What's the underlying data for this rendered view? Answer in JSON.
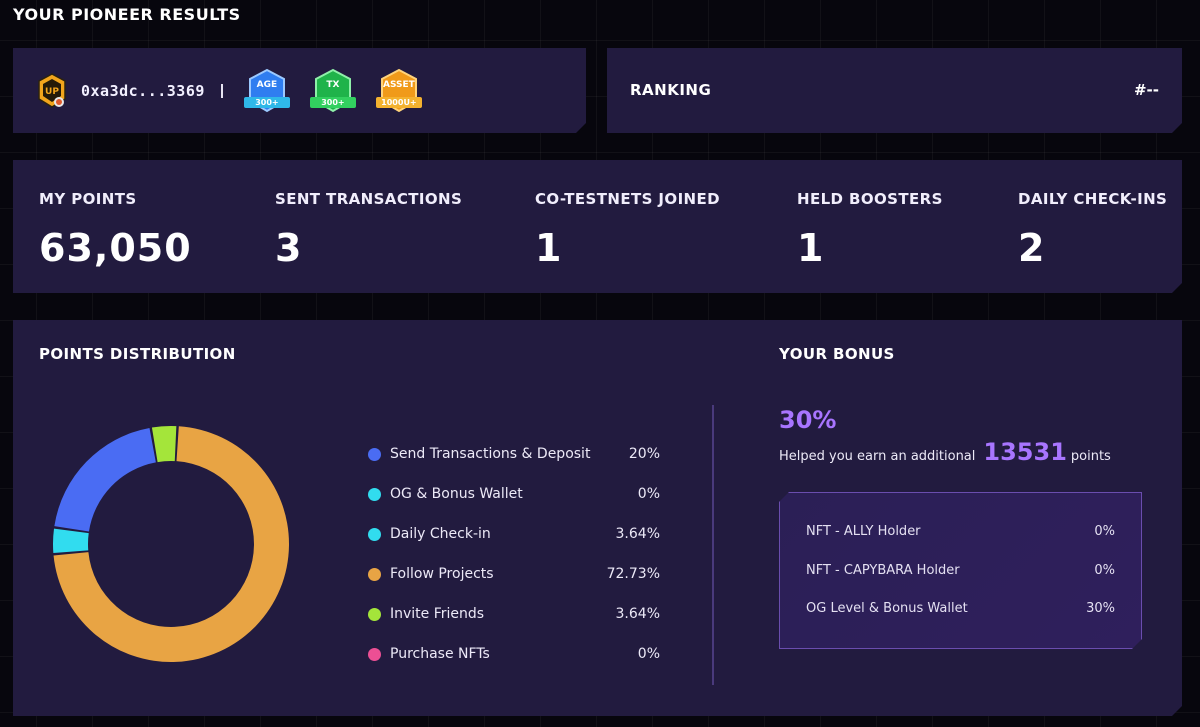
{
  "page": {
    "title": "YOUR PIONEER RESULTS"
  },
  "wallet": {
    "address": "0xa3dc...3369",
    "logo_text": "UP",
    "badges": [
      {
        "label": "AGE",
        "value": "300+",
        "color": "#2f7df0",
        "ribbon": "#2fb8e8"
      },
      {
        "label": "TX",
        "value": "300+",
        "color": "#1fb34a",
        "ribbon": "#32d05f"
      },
      {
        "label": "ASSET",
        "value": "1000U+",
        "color": "#f09a1a",
        "ribbon": "#f4b22f"
      }
    ]
  },
  "ranking": {
    "label": "RANKING",
    "value": "#--"
  },
  "stats": [
    {
      "label": "MY POINTS",
      "value": "63,050"
    },
    {
      "label": "SENT TRANSACTIONS",
      "value": "3"
    },
    {
      "label": "CO-TESTNETS JOINED",
      "value": "1"
    },
    {
      "label": "HELD BOOSTERS",
      "value": "1"
    },
    {
      "label": "DAILY CHECK-INS",
      "value": "2"
    }
  ],
  "distribution": {
    "title": "POINTS DISTRIBUTION",
    "items": [
      {
        "label": "Send Transactions & Deposit",
        "pct": "20%",
        "color": "#4a6cf3"
      },
      {
        "label": "OG & Bonus Wallet",
        "pct": "0%",
        "color": "#31dcef"
      },
      {
        "label": "Daily Check-in",
        "pct": "3.64%",
        "color": "#31dcef"
      },
      {
        "label": "Follow Projects",
        "pct": "72.73%",
        "color": "#e8a444"
      },
      {
        "label": "Invite Friends",
        "pct": "3.64%",
        "color": "#a4e53a"
      },
      {
        "label": "Purchase NFTs",
        "pct": "0%",
        "color": "#ec4f94"
      }
    ]
  },
  "chart_data": {
    "type": "pie",
    "categories": [
      "Send Transactions & Deposit",
      "OG & Bonus Wallet",
      "Daily Check-in",
      "Follow Projects",
      "Invite Friends",
      "Purchase NFTs"
    ],
    "values": [
      20,
      0,
      3.64,
      72.73,
      3.64,
      0
    ],
    "colors": [
      "#4a6cf3",
      "#31dcef",
      "#31dcef",
      "#e8a444",
      "#a4e53a",
      "#ec4f94"
    ],
    "donut": true
  },
  "bonus": {
    "title": "YOUR BONUS",
    "percent": "30%",
    "prefix": "Helped you earn an additional",
    "points": "13531",
    "suffix": "points",
    "items": [
      {
        "label": "NFT - ALLY Holder",
        "value": "0%"
      },
      {
        "label": "NFT - CAPYBARA Holder",
        "value": "0%"
      },
      {
        "label": "OG Level & Bonus Wallet",
        "value": "30%"
      }
    ]
  }
}
